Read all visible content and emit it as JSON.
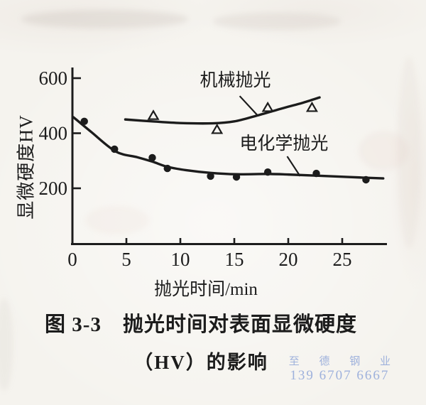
{
  "figure": {
    "caption_line1": "图 3-3　抛光时间对表面显微硬度",
    "caption_line2": "（HV）的影响"
  },
  "watermark": {
    "line1": "至 德 钢 业",
    "line2": "139 6707 6667",
    "color": "#8fa6d9"
  },
  "chart_data": {
    "type": "scatter",
    "title": "",
    "xlabel": "抛光时间/min",
    "ylabel": "显微硬度HV",
    "xlim": [
      0,
      29
    ],
    "ylim": [
      0,
      640
    ],
    "x_ticks": [
      0,
      5,
      10,
      15,
      20,
      25
    ],
    "y_ticks": [
      200,
      400,
      600
    ],
    "grid": false,
    "legend_position": "inline-annotations",
    "ink_color": "#1c1c1c",
    "series": [
      {
        "name": "机械抛光",
        "key": "mechanical-polishing",
        "marker": "open-triangle",
        "points": [
          [
            7.5,
            463
          ],
          [
            13.4,
            412
          ],
          [
            18.1,
            492
          ],
          [
            22.2,
            492
          ]
        ],
        "trend_curve": [
          [
            4.9,
            450
          ],
          [
            7.4,
            443
          ],
          [
            10,
            437
          ],
          [
            13,
            436
          ],
          [
            15,
            443
          ],
          [
            17,
            463
          ],
          [
            19.6,
            492
          ],
          [
            21.3,
            510
          ],
          [
            22.9,
            530
          ]
        ]
      },
      {
        "name": "电化学抛光",
        "key": "electrochemical-polishing",
        "marker": "filled-circle",
        "points": [
          [
            1.1,
            443
          ],
          [
            3.9,
            342
          ],
          [
            7.4,
            311
          ],
          [
            8.8,
            272
          ],
          [
            12.8,
            244
          ],
          [
            15.2,
            241
          ],
          [
            18.1,
            259
          ],
          [
            22.6,
            254
          ],
          [
            27.2,
            231
          ]
        ],
        "trend_curve": [
          [
            0.1,
            458
          ],
          [
            1.7,
            406
          ],
          [
            4,
            334
          ],
          [
            6,
            313
          ],
          [
            7.4,
            297
          ],
          [
            8.8,
            278
          ],
          [
            10.5,
            266
          ],
          [
            12.8,
            256
          ],
          [
            15.2,
            251
          ],
          [
            18.1,
            252
          ],
          [
            20,
            250
          ],
          [
            22.6,
            246
          ],
          [
            25.5,
            241
          ],
          [
            28.8,
            236
          ]
        ]
      }
    ],
    "annotations": [
      {
        "text": "机械抛光",
        "key": "mechanical-polishing-label",
        "x": 15.1,
        "y": 595,
        "leader": [
          [
            15.5,
            535
          ],
          [
            17.2,
            463
          ]
        ]
      },
      {
        "text": "电化学抛光",
        "key": "electrochemical-polishing-label",
        "x": 19.6,
        "y": 365,
        "leader": [
          [
            19.9,
            316
          ],
          [
            21.1,
            244
          ]
        ]
      }
    ]
  }
}
